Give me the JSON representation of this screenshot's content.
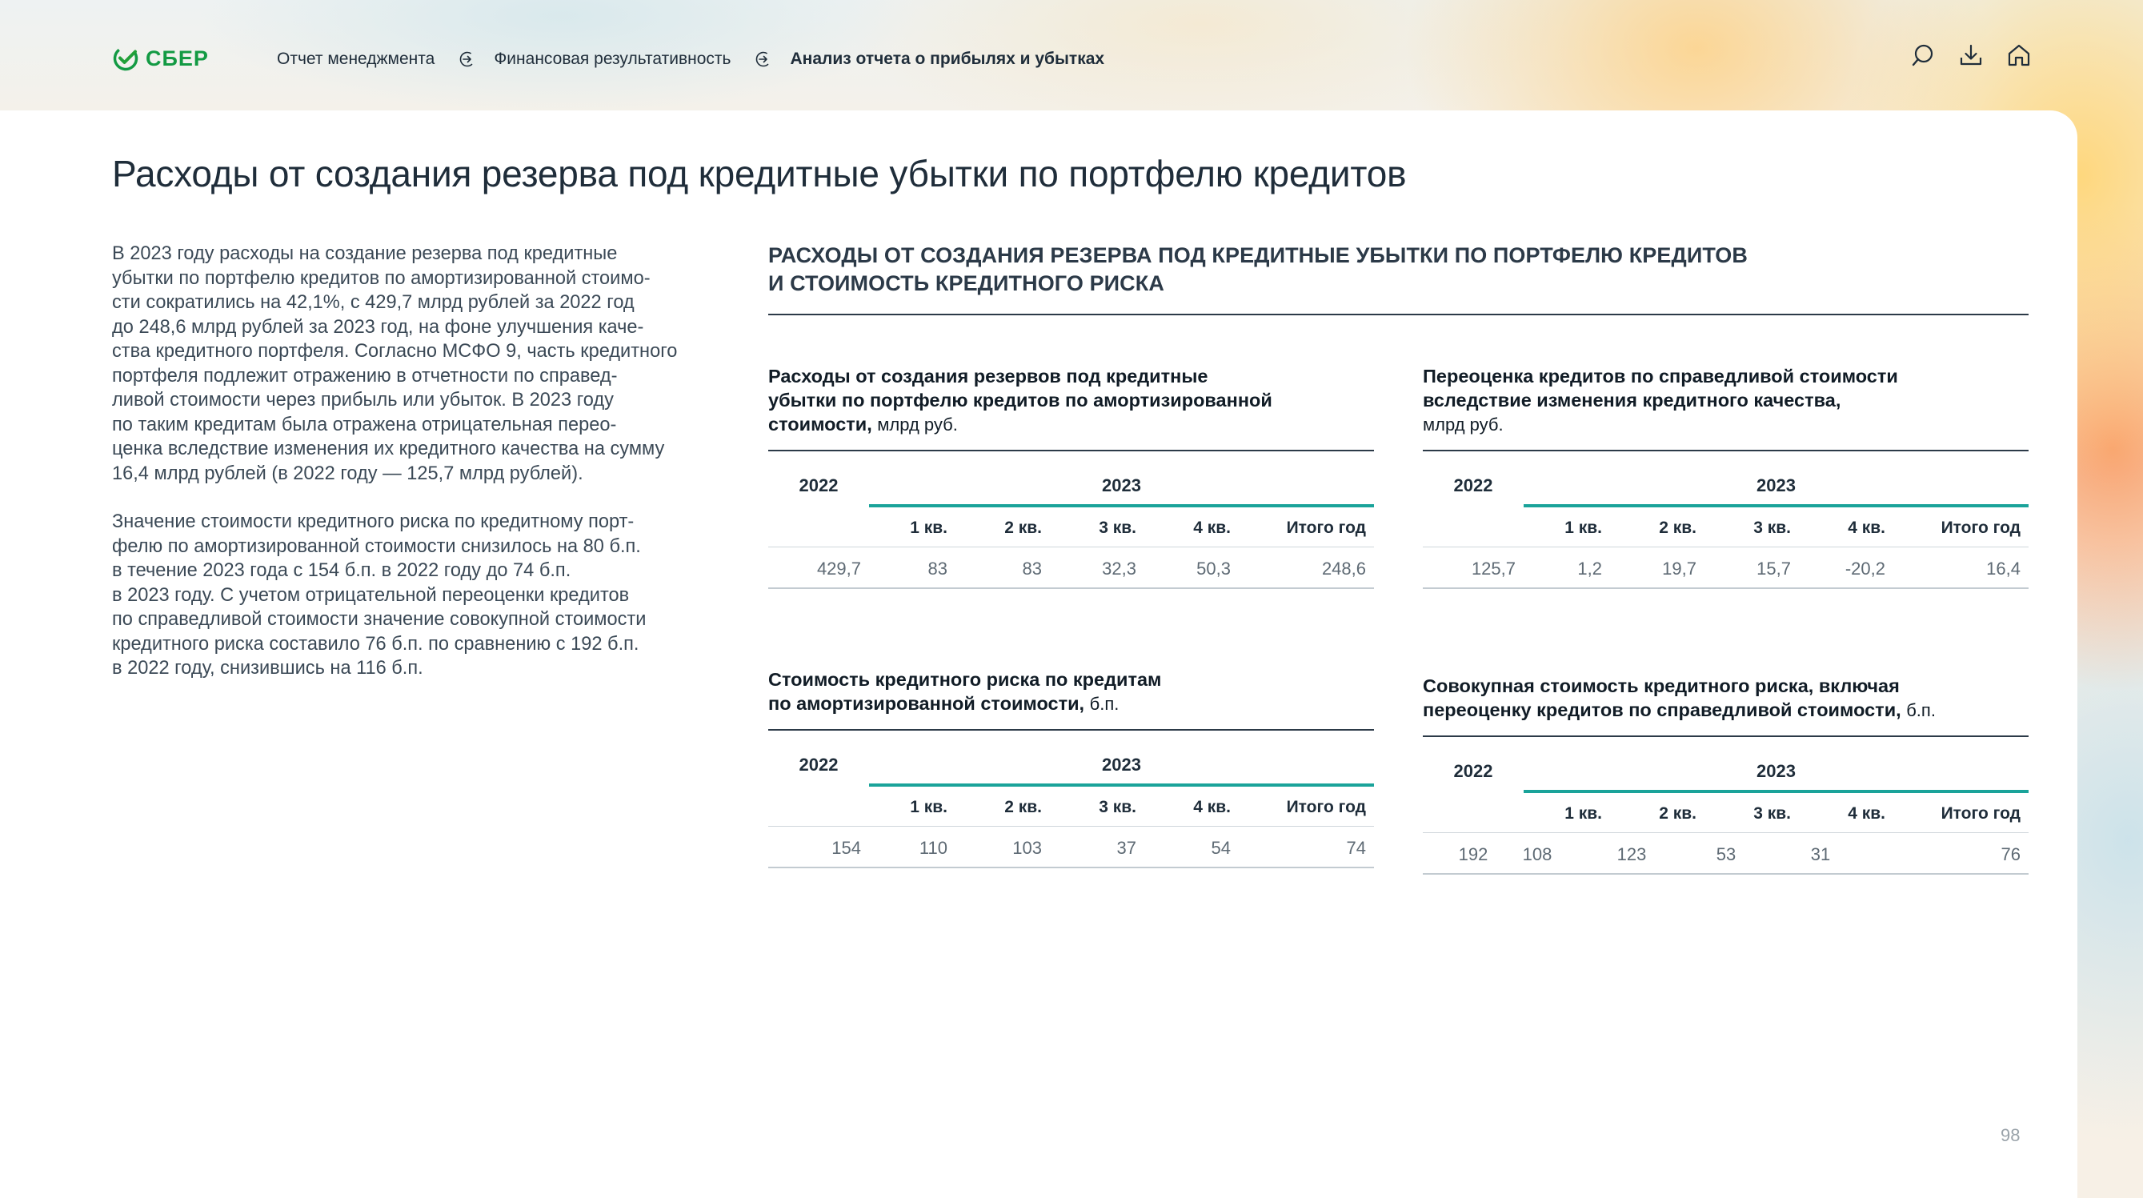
{
  "brand": {
    "logo_text": "СБЕР",
    "accent": "#139a43",
    "teal": "#1aa39a"
  },
  "breadcrumb": [
    {
      "label": "Отчет менеджмента"
    },
    {
      "label": "Финансовая результативность"
    },
    {
      "label": "Анализ отчета о прибылях и убытках"
    }
  ],
  "tools": [
    "search-icon",
    "download-icon",
    "home-icon"
  ],
  "page_title": "Расходы от создания резерва под кредитные убытки по портфелю кредитов",
  "intro": {
    "p1": [
      "В 2023 году расходы на создание резерва под кредитные",
      "убытки по портфелю кредитов по амортизированной стоимо-",
      "сти сократились на 42,1%, с 429,7 млрд рублей за 2022 год",
      "до 248,6 млрд рублей за 2023 год, на фоне улучшения каче-",
      "ства кредитного портфеля. Согласно МСФО 9, часть кредитного",
      "портфеля подлежит отражению в отчетности по справед-",
      "ливой стоимости через прибыль или убыток. В 2023 году",
      "по таким кредитам была отражена отрицательная перео-",
      "ценка вследствие изменения их кредитного качества на сумму",
      "16,4 млрд рублей (в 2022 году — 125,7 млрд рублей)."
    ],
    "p2": [
      "Значение стоимости кредитного риска по кредитному порт-",
      "фелю по амортизированной стоимости снизилось на 80 б.п.",
      "в течение 2023 года с 154 б.п. в 2022 году до 74 б.п.",
      "в 2023 году. С учетом отрицательной переоценки кредитов",
      "по справедливой стоимости значение совокупной стоимости",
      "кредитного риска составило 76 б.п. по сравнению с 192 б.п.",
      "в 2022 году, снизившись на 116 б.п."
    ]
  },
  "section_heading": {
    "line1": "Расходы от создания резерва под кредитные убытки по портфелю кредитов",
    "line2": "и стоимость кредитного риска"
  },
  "tables": [
    {
      "caption_lines": [
        "Расходы от создания резервов под кредитные",
        "убытки по портфелю кредитов по амортизированной",
        "стоимости,"
      ],
      "unit": "млрд руб.",
      "year_prev": "2022",
      "year_curr": "2023",
      "quarters": [
        "1 кв.",
        "2 кв.",
        "3 кв.",
        "4 кв.",
        "Итого год"
      ],
      "value_prev": "429,7",
      "values": [
        "83",
        "83",
        "32,3",
        "50,3",
        "248,6"
      ]
    },
    {
      "caption_lines": [
        "Переоценка кредитов по справедливой стоимости",
        "вследствие изменения кредитного качества,"
      ],
      "unit": "млрд руб.",
      "year_prev": "2022",
      "year_curr": "2023",
      "quarters": [
        "1 кв.",
        "2 кв.",
        "3 кв.",
        "4 кв.",
        "Итого год"
      ],
      "value_prev": "125,7",
      "values": [
        "1,2",
        "19,7",
        "15,7",
        "-20,2",
        "16,4"
      ]
    },
    {
      "caption_lines": [
        "Стоимость кредитного риска по кредитам",
        "по амортизированной стоимости,"
      ],
      "unit": "б.п.",
      "year_prev": "2022",
      "year_curr": "2023",
      "quarters": [
        "1 кв.",
        "2 кв.",
        "3 кв.",
        "4 кв.",
        "Итого год"
      ],
      "value_prev": "154",
      "values": [
        "110",
        "103",
        "37",
        "54",
        "74"
      ]
    },
    {
      "caption_lines": [
        "Совокупная стоимость кредитного риска, включая",
        "переоценку кредитов по справедливой стоимости,"
      ],
      "unit": "б.п.",
      "year_prev": "2022",
      "year_curr": "2023",
      "quarters": [
        "1 кв.",
        "2 кв.",
        "3 кв.",
        "4 кв.",
        "Итого год"
      ],
      "value_prev": "192",
      "values": [
        "108",
        "123",
        "53",
        "31",
        "76"
      ]
    }
  ],
  "page_number": "98"
}
